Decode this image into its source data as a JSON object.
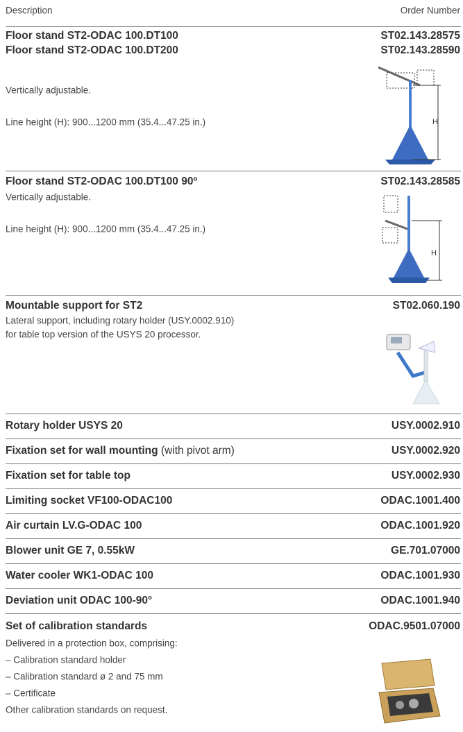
{
  "header": {
    "description": "Description",
    "order_number": "Order Number"
  },
  "items": [
    {
      "titles": [
        "Floor stand ST2-ODAC 100.DT100",
        "Floor stand ST2-ODAC 100.DT200"
      ],
      "order_numbers": [
        "ST02.143.28575",
        "ST02.143.28590"
      ],
      "description": [
        "Vertically adjustable.",
        "Line height (H): 900...1200 mm (35.4...47.25 in.)"
      ],
      "figure_label": "H"
    },
    {
      "titles": [
        "Floor stand ST2-ODAC 100.DT100 90º"
      ],
      "order_numbers": [
        "ST02.143.28585"
      ],
      "description": [
        "Vertically adjustable.",
        "Line height (H): 900...1200 mm (35.4...47.25 in.)"
      ],
      "figure_label": "H"
    },
    {
      "titles": [
        "Mountable support for ST2"
      ],
      "order_numbers": [
        "ST02.060.190"
      ],
      "description": [
        "Lateral support, including rotary holder (USY.0002.910)",
        "for table top version of the USYS 20 processor."
      ]
    },
    {
      "titles": [
        "Rotary holder USYS 20"
      ],
      "order_numbers": [
        "USY.0002.910"
      ]
    },
    {
      "titles": [
        "Fixation set for wall mounting"
      ],
      "title_note": "(with pivot arm)",
      "order_numbers": [
        "USY.0002.920"
      ]
    },
    {
      "titles": [
        "Fixation set for table top"
      ],
      "order_numbers": [
        "USY.0002.930"
      ]
    },
    {
      "titles": [
        "Limiting socket VF100-ODAC100"
      ],
      "order_numbers": [
        "ODAC.1001.400"
      ]
    },
    {
      "titles": [
        "Air curtain LV.G-ODAC 100"
      ],
      "order_numbers": [
        "ODAC.1001.920"
      ]
    },
    {
      "titles": [
        "Blower unit GE 7, 0.55kW"
      ],
      "order_numbers": [
        "GE.701.07000"
      ]
    },
    {
      "titles": [
        "Water cooler WK1-ODAC 100"
      ],
      "order_numbers": [
        "ODAC.1001.930"
      ]
    },
    {
      "titles": [
        "Deviation unit ODAC 100-90°"
      ],
      "order_numbers": [
        "ODAC.1001.940"
      ]
    },
    {
      "titles": [
        "Set of calibration standards"
      ],
      "order_numbers": [
        "ODAC.9501.07000"
      ],
      "description": [
        "Delivered in a protection box, comprising:",
        "– Calibration standard holder",
        "– Calibration standard ø 2 and 75 mm",
        "– Certificate",
        "Other calibration standards on request."
      ]
    }
  ]
}
